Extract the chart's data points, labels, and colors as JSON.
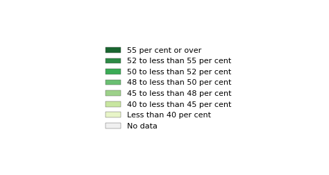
{
  "title": "",
  "legend_labels": [
    "55 per cent or over",
    "52 to less than 55 per cent",
    "50 to less than 52 per cent",
    "48 to less than 50 per cent",
    "45 to less than 48 per cent",
    "40 to less than 45 per cent",
    "Less than 40 per cent",
    "No data"
  ],
  "legend_colors": [
    "#1a6630",
    "#2d8a45",
    "#3aab55",
    "#6abf72",
    "#9dd18a",
    "#c8e6a0",
    "#e8f5c8",
    "#f0f0f0"
  ],
  "background_color": "#ffffff",
  "ocean_color": "#ffffff",
  "border_color": "#888888",
  "border_width": 0.2,
  "legend_fontsize": 4.5,
  "figsize": [
    4.74,
    2.52
  ],
  "dpi": 100
}
